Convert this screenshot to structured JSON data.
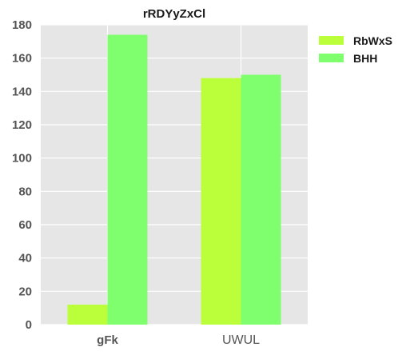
{
  "chart_data": {
    "type": "bar",
    "title": "rRDYyZxCl",
    "categories": [
      "gFk",
      "UWUL"
    ],
    "series": [
      {
        "name": "RbWxS",
        "values": [
          12,
          148
        ],
        "color": "#bbff3b"
      },
      {
        "name": "BHH",
        "values": [
          174,
          150
        ],
        "color": "#80ff6e"
      }
    ],
    "ylim": [
      0,
      180
    ],
    "yticks": [
      0,
      20,
      40,
      60,
      80,
      100,
      120,
      140,
      160,
      180
    ],
    "grid": true,
    "legend": "top-right",
    "plot_background": "#e6e6e6",
    "grid_color": "#ffffff"
  }
}
